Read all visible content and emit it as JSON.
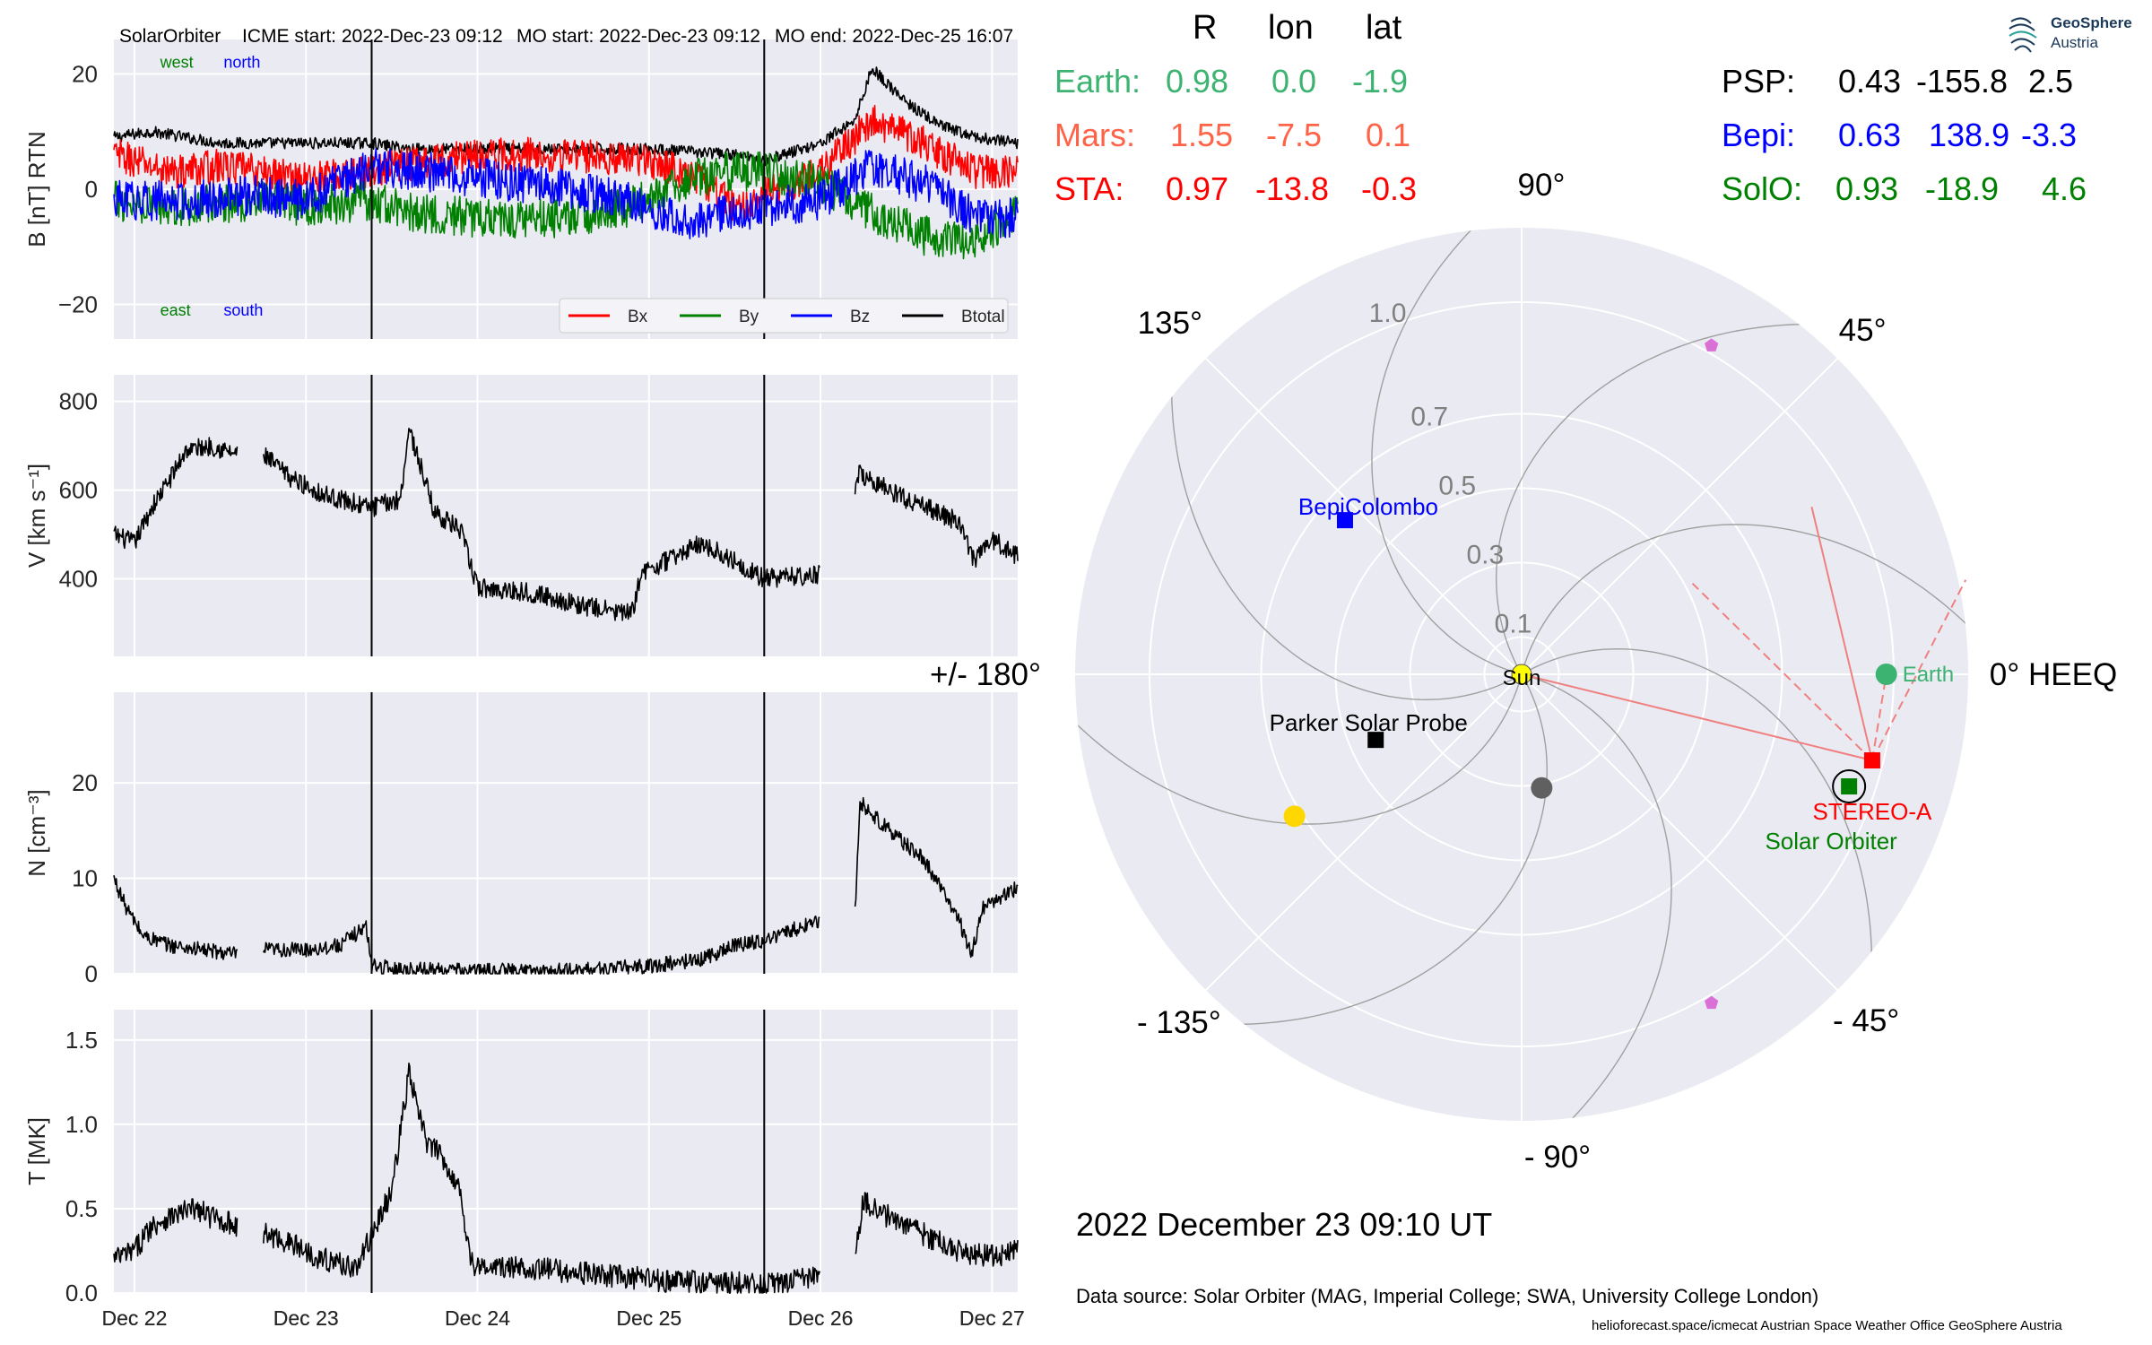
{
  "header": {
    "spacecraft": "SolarOrbiter",
    "icme_start": "ICME start: 2022-Dec-23 09:12",
    "mo_start": "MO start: 2022-Dec-23 09:12",
    "mo_end": "MO end: 2022-Dec-25 16:07"
  },
  "position_table": {
    "columns": [
      "R",
      "lon",
      "lat"
    ],
    "rows": [
      {
        "name": "Earth:",
        "R": "0.98",
        "lon": "0.0",
        "lat": "-1.9",
        "color": "#3cb371"
      },
      {
        "name": "Mars:",
        "R": "1.55",
        "lon": "-7.5",
        "lat": "0.1",
        "color": "#ff6347"
      },
      {
        "name": "STA:",
        "R": "0.97",
        "lon": "-13.8",
        "lat": "-0.3",
        "color": "#ff0000"
      },
      {
        "name": "PSP:",
        "R": "0.43",
        "lon": "-155.8",
        "lat": "2.5",
        "color": "#000000"
      },
      {
        "name": "Bepi:",
        "R": "0.63",
        "lon": "138.9",
        "lat": "-3.3",
        "color": "#0000ff"
      },
      {
        "name": "SolO:",
        "R": "0.93",
        "lon": "-18.9",
        "lat": "4.6",
        "color": "#008000"
      }
    ]
  },
  "logo": {
    "line1": "GeoSphere",
    "line2": "Austria"
  },
  "date_label": "2022 December 23  09:10 UT",
  "source_label": "Data source: Solar Orbiter (MAG, Imperial College; SWA, University College London)",
  "footer_label": "helioforecast.space/icmecat   Austrian Space Weather Office   GeoSphere Austria",
  "colors": {
    "panel_bg": "#eaeaf2",
    "grid": "#ffffff",
    "bx": "#ff0000",
    "by": "#008000",
    "bz": "#0000ff",
    "btotal": "#000000"
  },
  "chart_data": [
    {
      "type": "line",
      "ylabel": "B [nT] RTN",
      "ylim": [
        -26,
        26
      ],
      "yticks": [
        -20,
        0,
        20
      ],
      "ytick_labels": [
        "−20",
        "0",
        "20"
      ],
      "xlim": [
        -0.12,
        5.15
      ],
      "xticks": [
        0,
        1,
        2,
        3,
        4,
        5
      ],
      "xtick_labels": [
        "Dec 22",
        "Dec 23",
        "Dec 24",
        "Dec 25",
        "Dec 26",
        "Dec 27"
      ],
      "event_lines_x": [
        1.383,
        3.672
      ],
      "annotations": [
        {
          "text": "west",
          "color": "#008000",
          "x": 0.15,
          "y": 22
        },
        {
          "text": "north",
          "color": "#0000ff",
          "x": 0.52,
          "y": 22
        },
        {
          "text": "east",
          "color": "#008000",
          "x": 0.15,
          "y": -21
        },
        {
          "text": "south",
          "color": "#0000ff",
          "x": 0.52,
          "y": -21
        }
      ],
      "legend": [
        "Bx",
        "By",
        "Bz",
        "Btotal"
      ],
      "legend_position": "lower-right",
      "series": [
        {
          "name": "Btotal",
          "color": "#000000",
          "gaps": [],
          "x": [
            -0.12,
            0.1,
            0.3,
            0.5,
            0.7,
            1.0,
            1.38,
            1.6,
            2.0,
            2.5,
            3.0,
            3.5,
            3.67,
            4.0,
            4.2,
            4.3,
            4.5,
            4.7,
            4.9,
            5.15
          ],
          "y": [
            9,
            10,
            9,
            8,
            8,
            8,
            8,
            7,
            7,
            7,
            7,
            6,
            5,
            8,
            12,
            21,
            15,
            11,
            9,
            8
          ],
          "noise": 1.0
        },
        {
          "name": "Bx",
          "color": "#ff0000",
          "gaps": [],
          "x": [
            -0.12,
            0.2,
            0.5,
            1.0,
            1.38,
            1.5,
            2.0,
            2.5,
            3.0,
            3.3,
            3.5,
            3.67,
            4.0,
            4.3,
            4.6,
            4.9,
            5.15
          ],
          "y": [
            6,
            3,
            4,
            2,
            3,
            4,
            6,
            6,
            5,
            2,
            -3,
            -1,
            3,
            12,
            8,
            3,
            3
          ],
          "noise": 3.0
        },
        {
          "name": "By",
          "color": "#008000",
          "gaps": [],
          "x": [
            -0.12,
            0.3,
            0.7,
            1.0,
            1.38,
            1.6,
            2.0,
            2.5,
            2.9,
            3.2,
            3.4,
            3.67,
            4.0,
            4.3,
            4.6,
            4.9,
            5.15
          ],
          "y": [
            -2,
            -3,
            -2,
            -3,
            -2,
            -4,
            -5,
            -5,
            -3,
            1,
            3,
            3,
            1,
            -4,
            -8,
            -9,
            -4
          ],
          "noise": 3.5
        },
        {
          "name": "Bz",
          "color": "#0000ff",
          "gaps": [],
          "x": [
            -0.12,
            0.3,
            0.7,
            1.0,
            1.38,
            1.7,
            2.0,
            2.5,
            2.9,
            3.2,
            3.5,
            3.67,
            4.0,
            4.3,
            4.6,
            4.9,
            5.15
          ],
          "y": [
            -2,
            -2,
            -1,
            -2,
            4,
            3,
            2,
            0,
            -2,
            -6,
            -4,
            -3,
            -2,
            4,
            1,
            -5,
            -5
          ],
          "noise": 3.5
        }
      ]
    },
    {
      "type": "line",
      "ylabel": "V [km s⁻¹]",
      "ylim": [
        225,
        860
      ],
      "yticks": [
        400,
        600,
        800
      ],
      "ytick_labels": [
        "400",
        "600",
        "800"
      ],
      "xlim": [
        -0.12,
        5.15
      ],
      "xticks": [
        0,
        1,
        2,
        3,
        4,
        5
      ],
      "event_lines_x": [
        1.383,
        3.672
      ],
      "series": [
        {
          "name": "V",
          "color": "#000000",
          "gaps": [
            [
              0.6,
              0.75
            ],
            [
              4.0,
              4.2
            ]
          ],
          "x": [
            -0.12,
            0.0,
            0.1,
            0.2,
            0.3,
            0.45,
            0.6,
            0.75,
            0.9,
            1.1,
            1.38,
            1.55,
            1.6,
            1.75,
            1.9,
            2.0,
            2.3,
            2.6,
            2.9,
            2.95,
            3.1,
            3.3,
            3.5,
            3.67,
            4.0,
            4.2,
            4.21,
            4.5,
            4.8,
            4.9,
            5.0,
            5.15
          ],
          "y": [
            500,
            480,
            560,
            620,
            690,
            700,
            680,
            680,
            630,
            590,
            560,
            580,
            740,
            550,
            510,
            380,
            370,
            340,
            320,
            410,
            440,
            480,
            440,
            400,
            410,
            560,
            640,
            580,
            530,
            440,
            490,
            450
          ],
          "noise": 22
        }
      ]
    },
    {
      "type": "line",
      "ylabel": "N [cm⁻³]",
      "ylim": [
        0,
        29.5
      ],
      "yticks": [
        0,
        10,
        20
      ],
      "ytick_labels": [
        "0",
        "10",
        "20"
      ],
      "xlim": [
        -0.12,
        5.15
      ],
      "xticks": [
        0,
        1,
        2,
        3,
        4,
        5
      ],
      "event_lines_x": [
        1.383,
        3.672
      ],
      "series": [
        {
          "name": "N",
          "color": "#000000",
          "gaps": [
            [
              0.6,
              0.75
            ],
            [
              4.0,
              4.2
            ]
          ],
          "x": [
            -0.12,
            -0.05,
            0.05,
            0.2,
            0.4,
            0.6,
            0.75,
            1.0,
            1.2,
            1.35,
            1.383,
            1.5,
            2.0,
            2.5,
            3.0,
            3.3,
            3.5,
            3.67,
            3.9,
            4.0,
            4.2,
            4.23,
            4.4,
            4.6,
            4.8,
            4.88,
            4.95,
            5.15
          ],
          "y": [
            10,
            7,
            4,
            3,
            2.5,
            2,
            2.5,
            2.5,
            3,
            5,
            1,
            0.5,
            0.3,
            0.3,
            0.8,
            1.5,
            3,
            3.5,
            5,
            5.5,
            6,
            18,
            15,
            12,
            6,
            2,
            7,
            9
          ],
          "noise": 0.8
        }
      ]
    },
    {
      "type": "line",
      "ylabel": "T [MK]",
      "ylim": [
        0,
        1.68
      ],
      "yticks": [
        0.0,
        0.5,
        1.0,
        1.5
      ],
      "ytick_labels": [
        "0.0",
        "0.5",
        "1.0",
        "1.5"
      ],
      "xlim": [
        -0.12,
        5.15
      ],
      "xticks": [
        0,
        1,
        2,
        3,
        4,
        5
      ],
      "xtick_labels": [
        "Dec 22",
        "Dec 23",
        "Dec 24",
        "Dec 25",
        "Dec 26",
        "Dec 27"
      ],
      "event_lines_x": [
        1.383,
        3.672
      ],
      "series": [
        {
          "name": "T",
          "color": "#000000",
          "gaps": [
            [
              0.6,
              0.75
            ],
            [
              4.0,
              4.2
            ]
          ],
          "x": [
            -0.12,
            0.0,
            0.1,
            0.2,
            0.35,
            0.45,
            0.6,
            0.75,
            0.9,
            1.1,
            1.3,
            1.383,
            1.5,
            1.6,
            1.7,
            1.8,
            1.9,
            1.96,
            2.0,
            2.3,
            2.6,
            3.0,
            3.4,
            3.67,
            4.0,
            4.2,
            4.25,
            4.4,
            4.6,
            4.8,
            5.0,
            5.15
          ],
          "y": [
            0.2,
            0.25,
            0.4,
            0.45,
            0.5,
            0.45,
            0.4,
            0.35,
            0.3,
            0.2,
            0.15,
            0.35,
            0.6,
            1.3,
            0.9,
            0.8,
            0.6,
            0.2,
            0.15,
            0.15,
            0.12,
            0.08,
            0.06,
            0.05,
            0.1,
            0.2,
            0.55,
            0.45,
            0.35,
            0.25,
            0.22,
            0.25
          ],
          "noise": 0.07
        }
      ]
    },
    {
      "type": "polar",
      "title": "0° HEEQ",
      "angle_labels": [
        {
          "angle": 0,
          "text": "0° HEEQ"
        },
        {
          "angle": 45,
          "text": "45°"
        },
        {
          "angle": 90,
          "text": "90°"
        },
        {
          "angle": 135,
          "text": "135°"
        },
        {
          "angle": 180,
          "text": "+/- 180°"
        },
        {
          "angle": -135,
          "text": "- 135°"
        },
        {
          "angle": -90,
          "text": "- 90°"
        },
        {
          "angle": -45,
          "text": "- 45°"
        }
      ],
      "r_max": 1.2,
      "r_ticks": [
        0.1,
        0.3,
        0.5,
        0.7,
        1.0
      ],
      "r_tick_labels": [
        "0.1",
        "0.3",
        "0.5",
        "0.7",
        "1.0"
      ],
      "objects": [
        {
          "name": "Sun",
          "label": "Sun",
          "r": 0.0,
          "lon": 0,
          "marker": "circle",
          "color": "#ffff00",
          "label_color": "#000000"
        },
        {
          "name": "Earth",
          "label": "Earth",
          "r": 0.98,
          "lon": 0.0,
          "marker": "circle",
          "color": "#3cb371",
          "label_color": "#3cb371"
        },
        {
          "name": "STEREO-A",
          "label": "STEREO-A",
          "r": 0.97,
          "lon": -13.8,
          "marker": "square",
          "color": "#ff0000",
          "label_color": "#ff0000"
        },
        {
          "name": "Solar Orbiter",
          "label": "Solar Orbiter",
          "r": 0.93,
          "lon": -18.9,
          "marker": "square",
          "color": "#008000",
          "label_color": "#008000",
          "ring": true
        },
        {
          "name": "BepiColombo",
          "label": "BepiColombo",
          "r": 0.63,
          "lon": 138.9,
          "marker": "square",
          "color": "#0000ff",
          "label_color": "#0000ff"
        },
        {
          "name": "Parker Solar Probe",
          "label": "Parker Solar Probe",
          "r": 0.43,
          "lon": -155.8,
          "marker": "square",
          "color": "#000000",
          "label_color": "#000000"
        },
        {
          "name": "Mercury",
          "label": "",
          "r": 0.31,
          "lon": -80,
          "marker": "circle",
          "color": "#606060"
        },
        {
          "name": "Venus",
          "label": "",
          "r": 0.72,
          "lon": -148,
          "marker": "circle",
          "color": "#ffd700"
        },
        {
          "name": "pentagon-upper",
          "label": "",
          "r": 1.02,
          "lon": 60,
          "marker": "pentagon",
          "color": "#da70d6"
        },
        {
          "name": "pentagon-lower",
          "label": "",
          "r": 1.02,
          "lon": -60,
          "marker": "pentagon",
          "color": "#da70d6"
        }
      ],
      "spirals_from_lon": [
        -150,
        -105,
        -60,
        -15,
        30,
        75,
        120,
        165
      ],
      "sta_fov_lines": [
        {
          "to_r": 0.0,
          "to_lon": 0,
          "style": "solid"
        },
        {
          "to_r": 0.9,
          "to_lon": 30,
          "style": "solid"
        },
        {
          "to_r": 0.52,
          "to_lon": 28,
          "style": "dashed"
        },
        {
          "to_r": 0.98,
          "to_lon": 0,
          "style": "dashed"
        },
        {
          "to_r": 1.22,
          "to_lon": 12,
          "style": "dashed"
        }
      ]
    }
  ]
}
